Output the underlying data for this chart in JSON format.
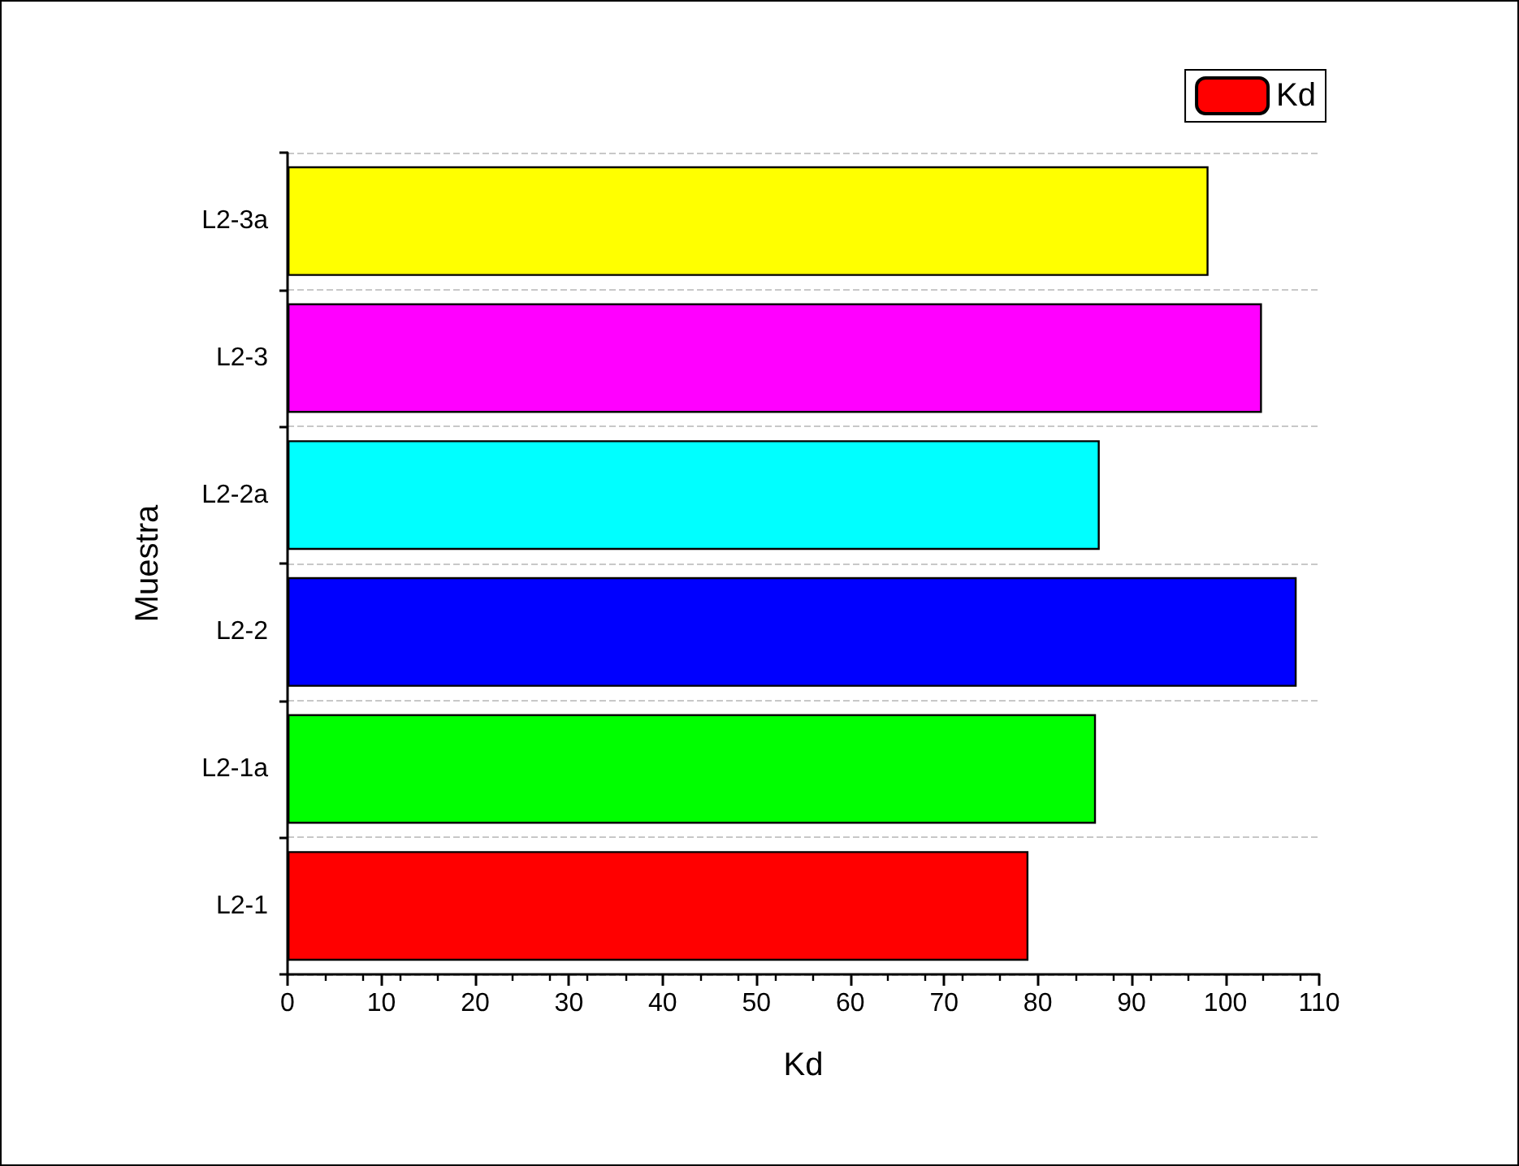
{
  "chart_data": {
    "type": "bar",
    "orientation": "horizontal",
    "xlabel": "Kd",
    "ylabel": "Muestra",
    "categories": [
      "L2-3a",
      "L2-3",
      "L2-2a",
      "L2-2",
      "L2-1a",
      "L2-1"
    ],
    "series": [
      {
        "name": "Kd",
        "color": "#ff0000",
        "values": [
          98.2,
          103.9,
          86.6,
          107.6,
          86.2,
          79.0
        ],
        "colors": [
          "#ffff00",
          "#ff00ff",
          "#00ffff",
          "#0000ff",
          "#00ff00",
          "#ff0000"
        ]
      }
    ],
    "xlim": [
      0,
      110
    ],
    "xticks": [
      0,
      10,
      20,
      30,
      40,
      50,
      60,
      70,
      80,
      90,
      100,
      110
    ],
    "grid": "y",
    "legend": "top right"
  }
}
